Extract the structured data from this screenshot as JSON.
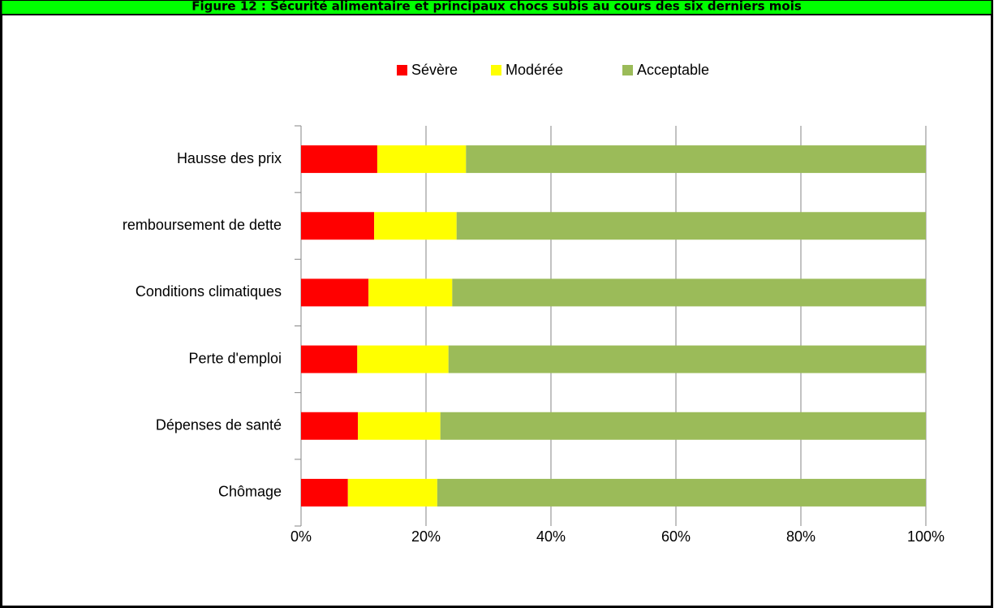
{
  "chart_data": {
    "type": "stacked-bar-horizontal",
    "title": "Figure 12 : Sécurité alimentaire et principaux chocs subis au cours des six derniers mois",
    "categories": [
      "Hausse des prix",
      "remboursement de dette",
      "Conditions climatiques",
      "Perte d'emploi",
      "Dépenses de santé",
      "Chômage"
    ],
    "series": [
      {
        "name": "Sévère",
        "color": "#ff0000",
        "values": [
          12.2,
          11.7,
          10.8,
          9.0,
          9.1,
          7.5
        ]
      },
      {
        "name": "Modérée",
        "color": "#ffff00",
        "values": [
          14.2,
          13.2,
          13.4,
          14.6,
          13.2,
          14.3
        ]
      },
      {
        "name": "Acceptable",
        "color": "#9bbb59",
        "values": [
          73.6,
          75.1,
          75.8,
          76.4,
          77.7,
          78.2
        ]
      }
    ],
    "xlim": [
      0,
      100
    ],
    "xticks": [
      {
        "value": 0,
        "label": "0%"
      },
      {
        "value": 20,
        "label": "20%"
      },
      {
        "value": 40,
        "label": "40%"
      },
      {
        "value": 60,
        "label": "60%"
      },
      {
        "value": 80,
        "label": "80%"
      },
      {
        "value": 100,
        "label": "100%"
      }
    ],
    "grid": true,
    "legend": "top"
  }
}
